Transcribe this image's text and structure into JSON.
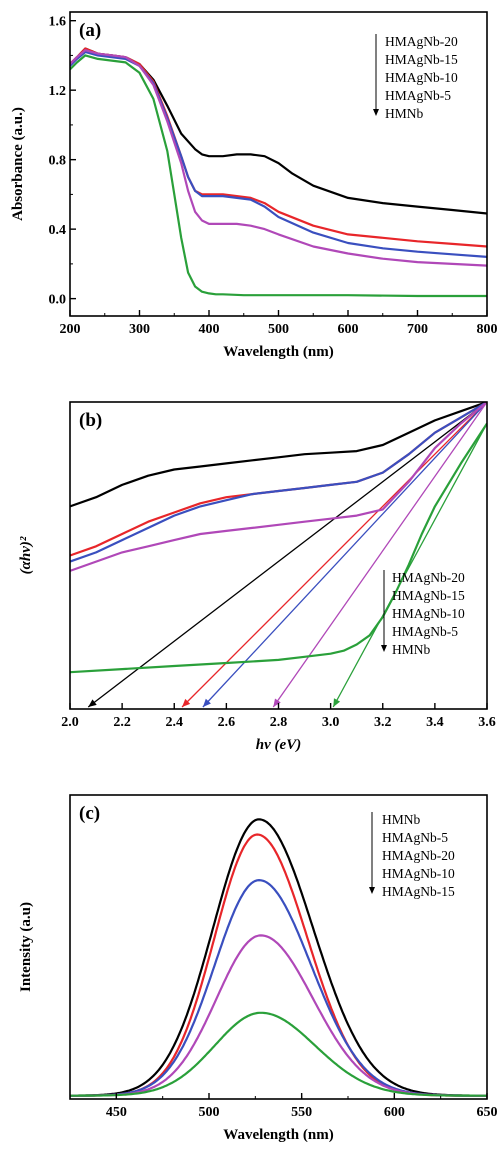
{
  "chart_data": [
    {
      "type": "line",
      "panel_label": "(a)",
      "xlabel": "Wavelength (nm)",
      "ylabel": "Absorbance (a.u.)",
      "xlim": [
        200,
        800
      ],
      "ylim": [
        -0.1,
        1.65
      ],
      "x_ticks": [
        200,
        300,
        400,
        500,
        600,
        700,
        800
      ],
      "y_ticks": [
        0.0,
        0.4,
        0.8,
        1.2,
        1.6
      ],
      "y_tick_labels": [
        "0.0",
        "0.4",
        "0.8",
        "1.2",
        "1.6"
      ],
      "legend": [
        "HMAgNb-20",
        "HMAgNb-15",
        "HMAgNb-10",
        "HMAgNb-5",
        "HMNb"
      ],
      "legend_placement": "top-right, with downward arrow",
      "grid": false,
      "series": [
        {
          "name": "HMAgNb-20",
          "color": "#000000",
          "x": [
            200,
            210,
            222,
            240,
            260,
            280,
            300,
            320,
            340,
            360,
            380,
            390,
            400,
            420,
            440,
            460,
            480,
            500,
            520,
            550,
            600,
            650,
            700,
            750,
            800
          ],
          "y": [
            1.35,
            1.39,
            1.44,
            1.41,
            1.4,
            1.39,
            1.35,
            1.26,
            1.11,
            0.95,
            0.86,
            0.83,
            0.82,
            0.82,
            0.83,
            0.83,
            0.82,
            0.78,
            0.72,
            0.65,
            0.58,
            0.55,
            0.53,
            0.51,
            0.49
          ]
        },
        {
          "name": "HMAgNb-15",
          "color": "#e8262a",
          "x": [
            200,
            210,
            222,
            240,
            260,
            280,
            300,
            320,
            340,
            360,
            370,
            380,
            390,
            400,
            420,
            440,
            460,
            480,
            500,
            550,
            600,
            650,
            700,
            750,
            800
          ],
          "y": [
            1.35,
            1.39,
            1.44,
            1.41,
            1.4,
            1.39,
            1.35,
            1.25,
            1.05,
            0.82,
            0.7,
            0.62,
            0.6,
            0.6,
            0.6,
            0.59,
            0.58,
            0.55,
            0.5,
            0.42,
            0.37,
            0.35,
            0.33,
            0.315,
            0.3
          ]
        },
        {
          "name": "HMAgNb-10",
          "color": "#3a4fbf",
          "x": [
            200,
            210,
            222,
            240,
            260,
            280,
            300,
            320,
            340,
            360,
            370,
            380,
            390,
            400,
            420,
            440,
            460,
            480,
            500,
            550,
            600,
            650,
            700,
            750,
            800
          ],
          "y": [
            1.34,
            1.38,
            1.42,
            1.4,
            1.39,
            1.38,
            1.34,
            1.24,
            1.04,
            0.82,
            0.7,
            0.62,
            0.59,
            0.59,
            0.59,
            0.58,
            0.57,
            0.53,
            0.47,
            0.38,
            0.32,
            0.29,
            0.27,
            0.255,
            0.24
          ]
        },
        {
          "name": "HMAgNb-5",
          "color": "#b048b8",
          "x": [
            200,
            210,
            222,
            240,
            260,
            280,
            300,
            320,
            340,
            360,
            370,
            380,
            390,
            400,
            420,
            440,
            460,
            480,
            500,
            550,
            600,
            650,
            700,
            750,
            800
          ],
          "y": [
            1.35,
            1.39,
            1.43,
            1.41,
            1.4,
            1.39,
            1.34,
            1.23,
            1.02,
            0.78,
            0.62,
            0.5,
            0.45,
            0.43,
            0.43,
            0.43,
            0.42,
            0.4,
            0.37,
            0.3,
            0.26,
            0.23,
            0.21,
            0.2,
            0.19
          ]
        },
        {
          "name": "HMNb",
          "color": "#2aa03a",
          "x": [
            200,
            210,
            222,
            240,
            260,
            280,
            300,
            320,
            340,
            350,
            360,
            370,
            380,
            390,
            400,
            410,
            420,
            450,
            500,
            600,
            700,
            800
          ],
          "y": [
            1.32,
            1.36,
            1.4,
            1.38,
            1.37,
            1.36,
            1.3,
            1.15,
            0.85,
            0.6,
            0.35,
            0.15,
            0.07,
            0.04,
            0.03,
            0.025,
            0.025,
            0.02,
            0.02,
            0.02,
            0.015,
            0.015
          ]
        }
      ]
    },
    {
      "type": "line",
      "panel_label": "(b)",
      "xlabel": "hν (eV)",
      "ylabel": "(αhν)²",
      "xlim": [
        2.0,
        3.6
      ],
      "ylim": [
        0,
        1
      ],
      "x_ticks": [
        2.0,
        2.2,
        2.4,
        2.6,
        2.8,
        3.0,
        3.2,
        3.4,
        3.6
      ],
      "x_tick_labels": [
        "2.0",
        "2.2",
        "2.4",
        "2.6",
        "2.8",
        "3.0",
        "3.2",
        "3.4",
        "3.6"
      ],
      "y_ticks_labeled": false,
      "legend": [
        "HMAgNb-20",
        "HMAgNb-15",
        "HMAgNb-10",
        "HMAgNb-5",
        "HMNb"
      ],
      "legend_placement": "bottom-right, with downward arrow",
      "grid": false,
      "series": [
        {
          "name": "HMAgNb-20",
          "color": "#000000",
          "x": [
            2.0,
            2.1,
            2.2,
            2.3,
            2.4,
            2.5,
            2.6,
            2.7,
            2.8,
            2.9,
            3.0,
            3.1,
            3.2,
            3.3,
            3.4,
            3.5,
            3.6
          ],
          "y": [
            0.66,
            0.69,
            0.73,
            0.76,
            0.78,
            0.79,
            0.8,
            0.81,
            0.82,
            0.83,
            0.835,
            0.84,
            0.86,
            0.9,
            0.94,
            0.97,
            1.0
          ],
          "extrapolation_x": [
            2.07,
            3.6
          ],
          "extrapolation_y": [
            0.0,
            1.0
          ]
        },
        {
          "name": "HMAgNb-15",
          "color": "#e8262a",
          "x": [
            2.0,
            2.1,
            2.2,
            2.3,
            2.4,
            2.5,
            2.6,
            2.7,
            2.8,
            2.9,
            3.0,
            3.1,
            3.2,
            3.3,
            3.4,
            3.5,
            3.6
          ],
          "y": [
            0.5,
            0.53,
            0.57,
            0.61,
            0.64,
            0.67,
            0.69,
            0.7,
            0.71,
            0.72,
            0.73,
            0.74,
            0.77,
            0.83,
            0.9,
            0.95,
            1.0
          ],
          "extrapolation_x": [
            2.43,
            3.6
          ],
          "extrapolation_y": [
            0.0,
            1.0
          ]
        },
        {
          "name": "HMAgNb-10",
          "color": "#3a4fbf",
          "x": [
            2.0,
            2.1,
            2.2,
            2.3,
            2.4,
            2.5,
            2.6,
            2.7,
            2.8,
            2.9,
            3.0,
            3.1,
            3.2,
            3.3,
            3.4,
            3.5,
            3.6
          ],
          "y": [
            0.48,
            0.51,
            0.55,
            0.59,
            0.63,
            0.66,
            0.68,
            0.7,
            0.71,
            0.72,
            0.73,
            0.74,
            0.77,
            0.83,
            0.9,
            0.95,
            1.0
          ],
          "extrapolation_x": [
            2.51,
            3.6
          ],
          "extrapolation_y": [
            0.0,
            1.0
          ]
        },
        {
          "name": "HMAgNb-5",
          "color": "#b048b8",
          "x": [
            2.0,
            2.1,
            2.2,
            2.3,
            2.4,
            2.5,
            2.6,
            2.7,
            2.8,
            2.9,
            3.0,
            3.1,
            3.2,
            3.3,
            3.4,
            3.5,
            3.6
          ],
          "y": [
            0.45,
            0.48,
            0.51,
            0.53,
            0.55,
            0.57,
            0.58,
            0.59,
            0.6,
            0.61,
            0.62,
            0.63,
            0.65,
            0.74,
            0.85,
            0.93,
            1.0
          ],
          "extrapolation_x": [
            2.78,
            3.6
          ],
          "extrapolation_y": [
            0.0,
            1.0
          ]
        },
        {
          "name": "HMNb",
          "color": "#2aa03a",
          "x": [
            2.0,
            2.2,
            2.4,
            2.6,
            2.8,
            2.9,
            3.0,
            3.05,
            3.1,
            3.15,
            3.2,
            3.25,
            3.3,
            3.35,
            3.4,
            3.5,
            3.6
          ],
          "y": [
            0.12,
            0.13,
            0.14,
            0.15,
            0.16,
            0.17,
            0.18,
            0.19,
            0.21,
            0.24,
            0.3,
            0.38,
            0.47,
            0.57,
            0.66,
            0.8,
            0.93
          ],
          "extrapolation_x": [
            3.01,
            3.6
          ],
          "extrapolation_y": [
            0.0,
            0.93
          ]
        }
      ]
    },
    {
      "type": "line",
      "panel_label": "(c)",
      "xlabel": "Wavelength (nm)",
      "ylabel": "Intensity (a.u)",
      "xlim": [
        425,
        650
      ],
      "ylim": [
        0,
        1.1
      ],
      "x_ticks": [
        450,
        500,
        550,
        600,
        650
      ],
      "y_ticks_labeled": false,
      "legend": [
        "HMNb",
        "HMAgNb-5",
        "HMAgNb-20",
        "HMAgNb-10",
        "HMAgNb-15"
      ],
      "legend_placement": "top-right, with downward arrow",
      "grid": false,
      "series": [
        {
          "name": "HMNb",
          "color": "#000000",
          "peak_x": 527,
          "peak_y": 1.0,
          "width": 27
        },
        {
          "name": "HMAgNb-5",
          "color": "#e8262a",
          "peak_x": 526,
          "peak_y": 0.945,
          "width": 25
        },
        {
          "name": "HMAgNb-20",
          "color": "#3a4fbf",
          "peak_x": 527,
          "peak_y": 0.78,
          "width": 26
        },
        {
          "name": "HMAgNb-10",
          "color": "#b048b8",
          "peak_x": 528,
          "peak_y": 0.58,
          "width": 26
        },
        {
          "name": "HMAgNb-15",
          "color": "#2aa03a",
          "peak_x": 528,
          "peak_y": 0.3,
          "width": 27
        }
      ]
    }
  ]
}
